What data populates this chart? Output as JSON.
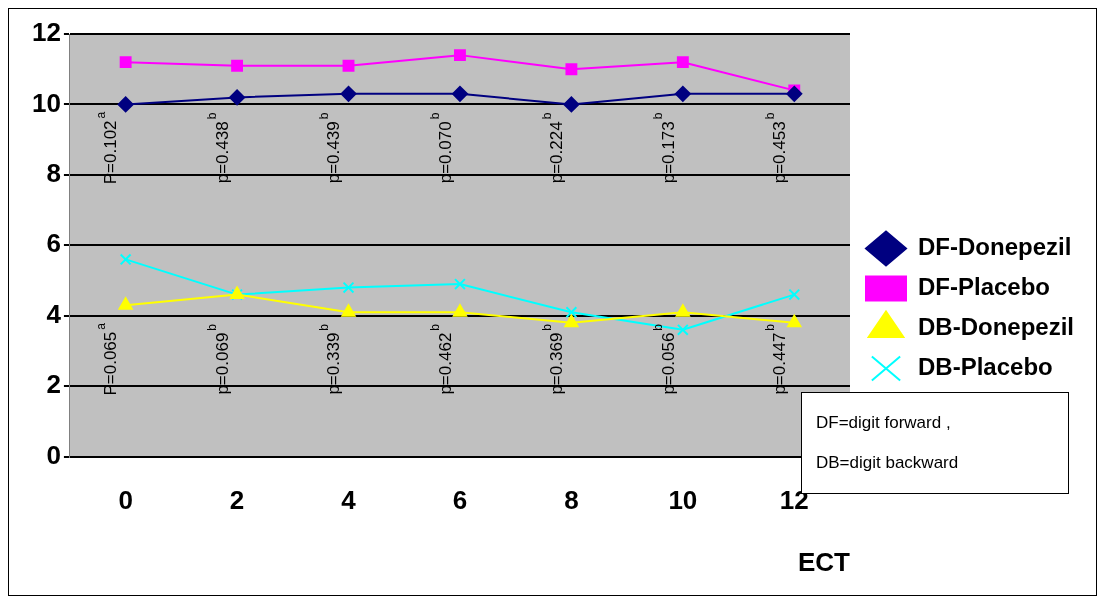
{
  "chart_data": {
    "type": "line",
    "xlabel": "ECT",
    "categories": [
      "0",
      "2",
      "4",
      "6",
      "8",
      "10",
      "12"
    ],
    "ylim": [
      0,
      12
    ],
    "yticks": [
      0,
      2,
      4,
      6,
      8,
      10,
      12
    ],
    "grid": "y",
    "legend": "right",
    "series": [
      {
        "name": "DF-Donepezil",
        "color": "#000080",
        "marker": "diamond",
        "values": [
          10,
          10.2,
          10.3,
          10.3,
          10,
          10.3,
          10.3
        ]
      },
      {
        "name": "DF-Placebo",
        "color": "#ff00ff",
        "marker": "square",
        "values": [
          11.2,
          11.1,
          11.1,
          11.4,
          11.0,
          11.2,
          10.4
        ]
      },
      {
        "name": "DB-Donepezil",
        "color": "#ffff00",
        "marker": "triangle",
        "values": [
          4.3,
          4.6,
          4.1,
          4.1,
          3.8,
          4.1,
          3.8
        ]
      },
      {
        "name": "DB-Placebo",
        "color": "#00ffff",
        "marker": "cross",
        "values": [
          5.6,
          4.6,
          4.8,
          4.9,
          4.1,
          3.6,
          4.6
        ]
      }
    ],
    "annotations": [
      "P=0.102$^{a}$",
      "p=0.438$^{b}$",
      "p=0.439$^{b}$",
      "p=0.070$^{b}$",
      "p=0.224$^{b}$",
      "p=0.173$^{b}$",
      "p=0.453$^{b}$",
      "P=0.065$^{a}$",
      "p=0.069$^{b}$",
      "p=0.339$^{b}$",
      "p=0.462$^{b}$",
      "p=0.369$^{b}$",
      "p=0.056$^{b}$",
      "p=0.447$^{b}$",
      "DF=digit forward ,",
      "DB=digit backward"
    ]
  }
}
